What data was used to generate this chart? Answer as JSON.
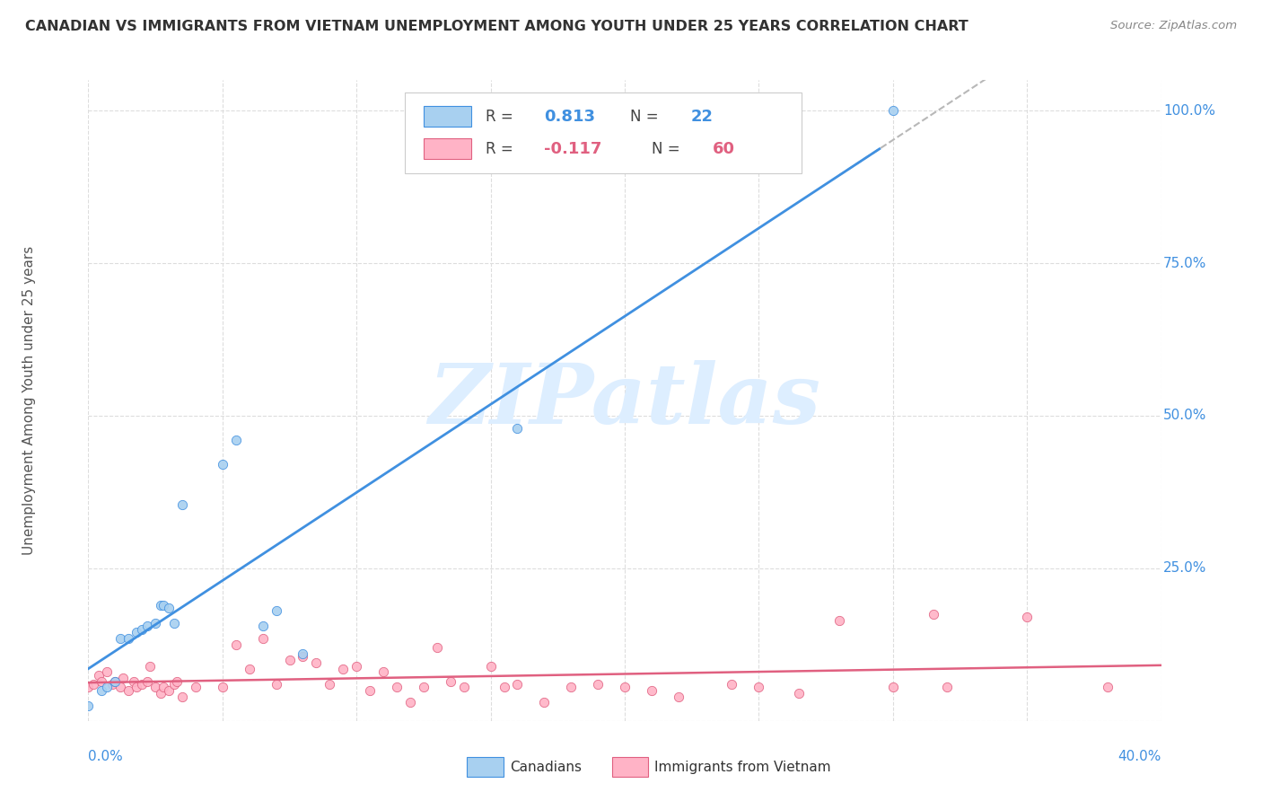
{
  "title": "CANADIAN VS IMMIGRANTS FROM VIETNAM UNEMPLOYMENT AMONG YOUTH UNDER 25 YEARS CORRELATION CHART",
  "source": "Source: ZipAtlas.com",
  "ylabel": "Unemployment Among Youth under 25 years",
  "legend_canadians_R": "0.813",
  "legend_canadians_N": "22",
  "legend_vietnam_R": "-0.117",
  "legend_vietnam_N": "60",
  "canadians_color": "#a8d0f0",
  "vietnam_color": "#ffb3c6",
  "trendline_canadians_color": "#4090e0",
  "trendline_vietnam_color": "#e06080",
  "trendline_extend_color": "#c0c0c0",
  "watermark": "ZIPatlas",
  "watermark_color": "#ddeeff",
  "canadians_x": [
    0.0,
    0.005,
    0.007,
    0.01,
    0.012,
    0.015,
    0.018,
    0.02,
    0.022,
    0.025,
    0.027,
    0.028,
    0.03,
    0.032,
    0.035,
    0.05,
    0.055,
    0.065,
    0.07,
    0.08,
    0.16,
    0.3
  ],
  "canadians_y": [
    0.025,
    0.05,
    0.055,
    0.065,
    0.135,
    0.135,
    0.145,
    0.15,
    0.155,
    0.16,
    0.19,
    0.19,
    0.185,
    0.16,
    0.355,
    0.42,
    0.46,
    0.155,
    0.18,
    0.11,
    0.48,
    1.0
  ],
  "vietnam_x": [
    0.0,
    0.002,
    0.004,
    0.005,
    0.007,
    0.009,
    0.01,
    0.012,
    0.013,
    0.015,
    0.017,
    0.018,
    0.02,
    0.022,
    0.023,
    0.025,
    0.027,
    0.028,
    0.03,
    0.032,
    0.033,
    0.035,
    0.04,
    0.05,
    0.055,
    0.06,
    0.065,
    0.07,
    0.075,
    0.08,
    0.085,
    0.09,
    0.095,
    0.1,
    0.105,
    0.11,
    0.115,
    0.12,
    0.125,
    0.13,
    0.135,
    0.14,
    0.15,
    0.155,
    0.16,
    0.17,
    0.18,
    0.19,
    0.2,
    0.21,
    0.22,
    0.24,
    0.25,
    0.265,
    0.28,
    0.3,
    0.315,
    0.32,
    0.35,
    0.38
  ],
  "vietnam_y": [
    0.055,
    0.06,
    0.075,
    0.065,
    0.08,
    0.06,
    0.065,
    0.055,
    0.07,
    0.05,
    0.065,
    0.055,
    0.06,
    0.065,
    0.09,
    0.055,
    0.045,
    0.055,
    0.05,
    0.06,
    0.065,
    0.04,
    0.055,
    0.055,
    0.125,
    0.085,
    0.135,
    0.06,
    0.1,
    0.105,
    0.095,
    0.06,
    0.085,
    0.09,
    0.05,
    0.08,
    0.055,
    0.03,
    0.055,
    0.12,
    0.065,
    0.055,
    0.09,
    0.055,
    0.06,
    0.03,
    0.055,
    0.06,
    0.055,
    0.05,
    0.04,
    0.06,
    0.055,
    0.045,
    0.165,
    0.055,
    0.175,
    0.055,
    0.17,
    0.055
  ],
  "xlim": [
    0.0,
    0.4
  ],
  "ylim": [
    0.0,
    1.05
  ],
  "ytick_vals": [
    0.0,
    0.25,
    0.5,
    0.75,
    1.0
  ],
  "ytick_labels_right": [
    "",
    "25.0%",
    "50.0%",
    "75.0%",
    "100.0%"
  ],
  "axis_label_color": "#4090e0",
  "grid_color": "#dddddd",
  "title_color": "#333333",
  "source_color": "#888888",
  "ylabel_color": "#555555"
}
